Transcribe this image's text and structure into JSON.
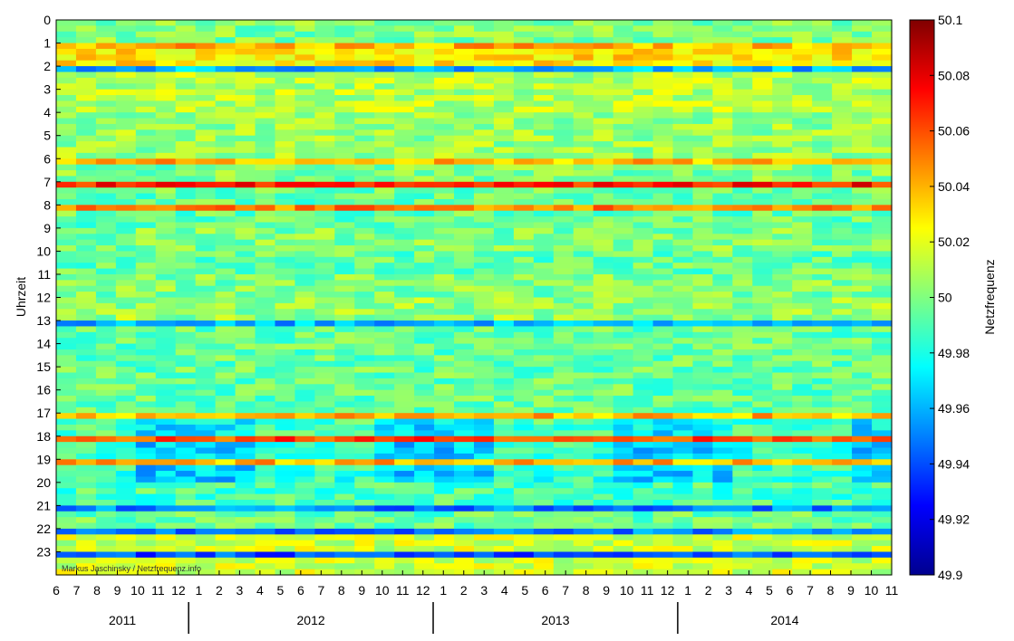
{
  "chart_data": {
    "type": "heatmap",
    "title": "",
    "ylabel": "Uhrzeit",
    "xlabel": "",
    "colorbar_label": "Netzfrequenz",
    "colormap": "jet",
    "colormap_stops": [
      "#00008f",
      "#0000ff",
      "#0080ff",
      "#00ffff",
      "#80ff80",
      "#ffff00",
      "#ff8000",
      "#ff0000",
      "#800000"
    ],
    "color_range": [
      49.9,
      50.1
    ],
    "colorbar_ticks": [
      "49.9",
      "49.92",
      "49.94",
      "49.96",
      "49.98",
      "50",
      "50.02",
      "50.04",
      "50.06",
      "50.08",
      "50.1"
    ],
    "y_ticks": [
      "0",
      "1",
      "2",
      "3",
      "4",
      "5",
      "6",
      "7",
      "8",
      "9",
      "10",
      "11",
      "12",
      "13",
      "14",
      "15",
      "16",
      "17",
      "18",
      "19",
      "20",
      "21",
      "22",
      "23"
    ],
    "x_month_ticks": [
      "6",
      "7",
      "8",
      "9",
      "10",
      "11",
      "12",
      "1",
      "2",
      "3",
      "4",
      "5",
      "6",
      "7",
      "8",
      "9",
      "10",
      "11",
      "12",
      "1",
      "2",
      "3",
      "4",
      "5",
      "6",
      "7",
      "8",
      "9",
      "10",
      "11",
      "12",
      "1",
      "2",
      "3",
      "4",
      "5",
      "6",
      "7",
      "8",
      "9",
      "10",
      "11"
    ],
    "years": [
      "2011",
      "2012",
      "2013",
      "2014"
    ],
    "x_range": [
      "2011-06",
      "2014-11"
    ],
    "y_range": [
      0,
      24
    ],
    "credit": "Markus Jaschinsky / Netzfrequenz.info",
    "hour_profile": [
      {
        "hour": 0,
        "value": 50.0
      },
      {
        "hour": 1,
        "value": 50.03
      },
      {
        "hour": 2,
        "value": 50.01
      },
      {
        "hour": 3,
        "value": 50.01
      },
      {
        "hour": 4,
        "value": 50.005
      },
      {
        "hour": 5,
        "value": 50.005
      },
      {
        "hour": 6,
        "value": 50.0
      },
      {
        "hour": 7,
        "value": 49.995
      },
      {
        "hour": 8,
        "value": 49.995
      },
      {
        "hour": 9,
        "value": 50.0
      },
      {
        "hour": 10,
        "value": 49.995
      },
      {
        "hour": 11,
        "value": 50.0
      },
      {
        "hour": 12,
        "value": 50.005
      },
      {
        "hour": 13,
        "value": 49.995
      },
      {
        "hour": 14,
        "value": 49.995
      },
      {
        "hour": 15,
        "value": 49.995
      },
      {
        "hour": 16,
        "value": 49.995
      },
      {
        "hour": 17,
        "value": 49.99
      },
      {
        "hour": 18,
        "value": 49.985
      },
      {
        "hour": 19,
        "value": 49.985
      },
      {
        "hour": 20,
        "value": 49.99
      },
      {
        "hour": 21,
        "value": 49.995
      },
      {
        "hour": 22,
        "value": 50.015
      },
      {
        "hour": 23,
        "value": 50.015
      }
    ],
    "hour_boundary_bands": [
      {
        "hour": 1,
        "value": 50.04
      },
      {
        "hour": 2,
        "value": 49.96
      },
      {
        "hour": 6,
        "value": 50.04
      },
      {
        "hour": 7,
        "value": 50.07
      },
      {
        "hour": 8,
        "value": 50.05
      },
      {
        "hour": 13,
        "value": 49.96
      },
      {
        "hour": 17,
        "value": 50.04
      },
      {
        "hour": 18,
        "value": 50.06
      },
      {
        "hour": 19,
        "value": 50.04
      },
      {
        "hour": 21,
        "value": 49.95
      },
      {
        "hour": 22,
        "value": 49.95
      },
      {
        "hour": 23,
        "value": 49.94
      }
    ]
  }
}
